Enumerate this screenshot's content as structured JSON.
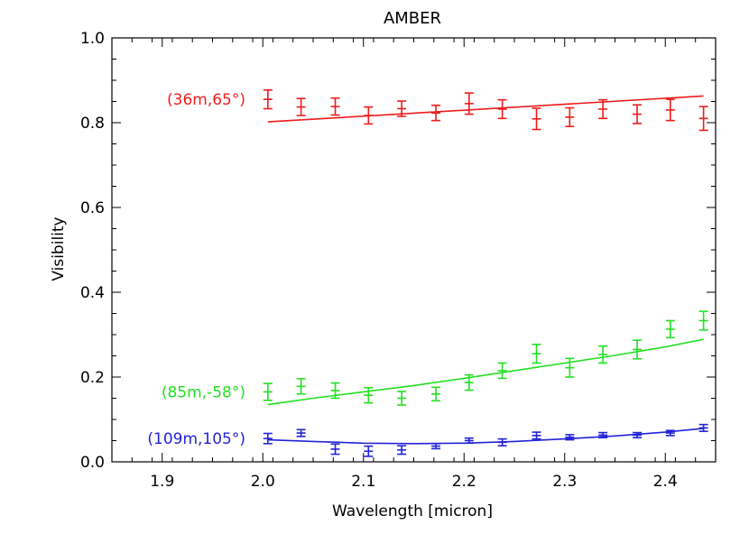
{
  "chart_data": {
    "type": "scatter",
    "title": "AMBER",
    "xlabel": "Wavelength [micron]",
    "ylabel": "Visibility",
    "xlim": [
      1.85,
      2.45
    ],
    "ylim": [
      0.0,
      1.0
    ],
    "xticks": [
      {
        "value": 1.9,
        "label": "1.9"
      },
      {
        "value": 2.0,
        "label": "2.0"
      },
      {
        "value": 2.1,
        "label": "2.1"
      },
      {
        "value": 2.2,
        "label": "2.2"
      },
      {
        "value": 2.3,
        "label": "2.3"
      },
      {
        "value": 2.4,
        "label": "2.4"
      }
    ],
    "yticks": [
      {
        "value": 0.0,
        "label": "0.0"
      },
      {
        "value": 0.2,
        "label": "0.2"
      },
      {
        "value": 0.4,
        "label": "0.4"
      },
      {
        "value": 0.6,
        "label": "0.6"
      },
      {
        "value": 0.8,
        "label": "0.8"
      },
      {
        "value": 1.0,
        "label": "1.0"
      }
    ],
    "grid": false,
    "series": [
      {
        "name": "(36m,65°)",
        "color": "#ee1c1c",
        "x": [
          2.005,
          2.038,
          2.072,
          2.105,
          2.138,
          2.172,
          2.205,
          2.238,
          2.272,
          2.305,
          2.338,
          2.372,
          2.405,
          2.438
        ],
        "y": [
          0.855,
          0.837,
          0.838,
          0.817,
          0.833,
          0.823,
          0.845,
          0.832,
          0.809,
          0.813,
          0.832,
          0.82,
          0.83,
          0.81
        ],
        "err": [
          0.022,
          0.02,
          0.02,
          0.02,
          0.018,
          0.018,
          0.025,
          0.022,
          0.025,
          0.022,
          0.022,
          0.022,
          0.025,
          0.028
        ],
        "fit_x": [
          2.005,
          2.438
        ],
        "fit_y": [
          0.802,
          0.863
        ]
      },
      {
        "name": "(85m,-58°)",
        "color": "#22e022",
        "x": [
          2.005,
          2.038,
          2.072,
          2.105,
          2.138,
          2.172,
          2.205,
          2.238,
          2.272,
          2.305,
          2.338,
          2.372,
          2.405,
          2.438
        ],
        "y": [
          0.165,
          0.178,
          0.168,
          0.157,
          0.15,
          0.16,
          0.187,
          0.215,
          0.255,
          0.222,
          0.253,
          0.265,
          0.313,
          0.333
        ],
        "err": [
          0.02,
          0.018,
          0.018,
          0.018,
          0.016,
          0.016,
          0.018,
          0.018,
          0.022,
          0.022,
          0.02,
          0.022,
          0.02,
          0.022
        ],
        "fit_x": [
          2.005,
          2.05,
          2.1,
          2.15,
          2.2,
          2.25,
          2.3,
          2.35,
          2.4,
          2.438
        ],
        "fit_y": [
          0.135,
          0.15,
          0.165,
          0.18,
          0.197,
          0.215,
          0.233,
          0.251,
          0.271,
          0.289
        ]
      },
      {
        "name": "(109m,105°)",
        "color": "#2323d8",
        "x": [
          2.005,
          2.038,
          2.072,
          2.105,
          2.138,
          2.172,
          2.205,
          2.238,
          2.272,
          2.305,
          2.338,
          2.372,
          2.405,
          2.438
        ],
        "y": [
          0.055,
          0.068,
          0.03,
          0.025,
          0.028,
          0.037,
          0.05,
          0.046,
          0.062,
          0.058,
          0.063,
          0.063,
          0.068,
          0.08
        ],
        "err": [
          0.012,
          0.008,
          0.012,
          0.012,
          0.01,
          0.006,
          0.006,
          0.008,
          0.008,
          0.006,
          0.006,
          0.006,
          0.006,
          0.008
        ],
        "fit_x": [
          2.005,
          2.05,
          2.1,
          2.15,
          2.2,
          2.25,
          2.3,
          2.35,
          2.4,
          2.438
        ],
        "fit_y": [
          0.052,
          0.048,
          0.044,
          0.043,
          0.044,
          0.048,
          0.054,
          0.061,
          0.07,
          0.079
        ]
      }
    ]
  }
}
